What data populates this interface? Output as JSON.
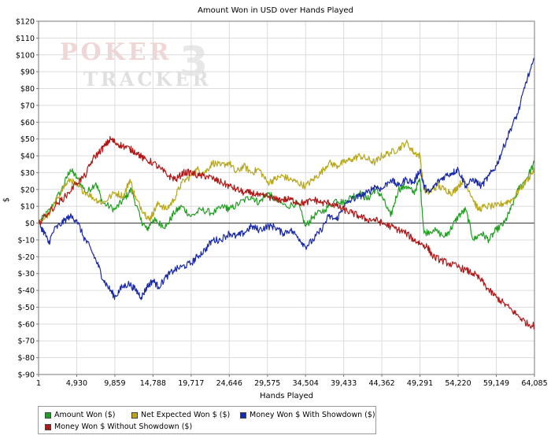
{
  "chart_data": {
    "type": "line",
    "title": "Amount Won in USD over Hands Played",
    "xlabel": "Hands Played",
    "ylabel": "$",
    "xlim": [
      1,
      64085
    ],
    "ylim": [
      -90,
      120
    ],
    "x_ticks": [
      "1",
      "4,930",
      "9,859",
      "14,788",
      "19,717",
      "24,646",
      "29,575",
      "34,504",
      "39,433",
      "44,362",
      "49,291",
      "54,220",
      "59,149",
      "64,085"
    ],
    "y_ticks": [
      "$120",
      "$110",
      "$100",
      "$90",
      "$80",
      "$70",
      "$60",
      "$50",
      "$40",
      "$30",
      "$20",
      "$10",
      "$0",
      "$-10",
      "$-20",
      "$-30",
      "$-40",
      "$-50",
      "$-60",
      "$-70",
      "$-80",
      "$-90"
    ],
    "grid": true,
    "legend_position": "bottom-left",
    "watermark": "POKER TRACKER 3",
    "series": [
      {
        "name": "Amount Won ($)",
        "color": "#1fa01f",
        "points": [
          [
            1,
            0
          ],
          [
            1500,
            8
          ],
          [
            3000,
            20
          ],
          [
            4100,
            32
          ],
          [
            4930,
            27
          ],
          [
            6200,
            18
          ],
          [
            7400,
            24
          ],
          [
            8300,
            12
          ],
          [
            9859,
            8
          ],
          [
            11000,
            14
          ],
          [
            12000,
            20
          ],
          [
            13200,
            2
          ],
          [
            14000,
            -4
          ],
          [
            14788,
            2
          ],
          [
            15500,
            0
          ],
          [
            16500,
            -2
          ],
          [
            17500,
            6
          ],
          [
            18500,
            10
          ],
          [
            19717,
            4
          ],
          [
            21000,
            8
          ],
          [
            22500,
            6
          ],
          [
            24000,
            10
          ],
          [
            24646,
            8
          ],
          [
            26000,
            12
          ],
          [
            27500,
            16
          ],
          [
            28500,
            12
          ],
          [
            29575,
            18
          ],
          [
            30500,
            14
          ],
          [
            32000,
            10
          ],
          [
            33500,
            12
          ],
          [
            34504,
            -2
          ],
          [
            35500,
            4
          ],
          [
            37000,
            8
          ],
          [
            38500,
            14
          ],
          [
            39433,
            12
          ],
          [
            40500,
            16
          ],
          [
            41500,
            18
          ],
          [
            42500,
            14
          ],
          [
            43500,
            20
          ],
          [
            44362,
            16
          ],
          [
            45500,
            4
          ],
          [
            46500,
            20
          ],
          [
            47500,
            22
          ],
          [
            48500,
            18
          ],
          [
            49291,
            26
          ],
          [
            49800,
            -6
          ],
          [
            51000,
            -4
          ],
          [
            52500,
            -8
          ],
          [
            53200,
            -4
          ],
          [
            54220,
            4
          ],
          [
            55200,
            8
          ],
          [
            56200,
            -10
          ],
          [
            57200,
            -6
          ],
          [
            58200,
            -10
          ],
          [
            59149,
            -4
          ],
          [
            60200,
            0
          ],
          [
            61000,
            8
          ],
          [
            62000,
            20
          ],
          [
            63000,
            26
          ],
          [
            64085,
            36
          ]
        ]
      },
      {
        "name": "Net Expected Won $ ($)",
        "color": "#b8a81c",
        "points": [
          [
            1,
            0
          ],
          [
            1500,
            6
          ],
          [
            3000,
            20
          ],
          [
            4100,
            26
          ],
          [
            4930,
            22
          ],
          [
            6200,
            18
          ],
          [
            7400,
            14
          ],
          [
            8300,
            12
          ],
          [
            9859,
            18
          ],
          [
            11000,
            16
          ],
          [
            11800,
            26
          ],
          [
            12600,
            14
          ],
          [
            13700,
            6
          ],
          [
            14300,
            2
          ],
          [
            14788,
            6
          ],
          [
            15500,
            12
          ],
          [
            16500,
            8
          ],
          [
            17500,
            14
          ],
          [
            18500,
            24
          ],
          [
            19717,
            28
          ],
          [
            20500,
            32
          ],
          [
            21500,
            30
          ],
          [
            22500,
            36
          ],
          [
            23500,
            34
          ],
          [
            24646,
            36
          ],
          [
            25500,
            30
          ],
          [
            26500,
            34
          ],
          [
            27500,
            30
          ],
          [
            28500,
            32
          ],
          [
            29575,
            24
          ],
          [
            30500,
            26
          ],
          [
            31500,
            28
          ],
          [
            32500,
            26
          ],
          [
            33500,
            24
          ],
          [
            34504,
            22
          ],
          [
            35500,
            26
          ],
          [
            36500,
            30
          ],
          [
            37500,
            36
          ],
          [
            38500,
            34
          ],
          [
            39433,
            36
          ],
          [
            40500,
            38
          ],
          [
            41500,
            40
          ],
          [
            42500,
            38
          ],
          [
            43500,
            36
          ],
          [
            44362,
            40
          ],
          [
            45500,
            42
          ],
          [
            46500,
            44
          ],
          [
            47500,
            48
          ],
          [
            48500,
            42
          ],
          [
            49291,
            40
          ],
          [
            49800,
            20
          ],
          [
            50500,
            18
          ],
          [
            51500,
            22
          ],
          [
            52500,
            20
          ],
          [
            53500,
            18
          ],
          [
            54220,
            22
          ],
          [
            55000,
            26
          ],
          [
            56000,
            16
          ],
          [
            56800,
            8
          ],
          [
            57800,
            10
          ],
          [
            59149,
            10
          ],
          [
            60200,
            12
          ],
          [
            61200,
            14
          ],
          [
            62200,
            20
          ],
          [
            63200,
            26
          ],
          [
            64085,
            32
          ]
        ]
      },
      {
        "name": "Money Won $ With Showdown ($)",
        "color": "#1a2aa8",
        "points": [
          [
            1,
            0
          ],
          [
            800,
            -6
          ],
          [
            1300,
            -12
          ],
          [
            2000,
            -4
          ],
          [
            3000,
            0
          ],
          [
            4000,
            4
          ],
          [
            4930,
            2
          ],
          [
            5800,
            -8
          ],
          [
            6800,
            -16
          ],
          [
            7600,
            -24
          ],
          [
            8400,
            -34
          ],
          [
            9300,
            -40
          ],
          [
            9859,
            -44
          ],
          [
            10800,
            -38
          ],
          [
            11700,
            -36
          ],
          [
            12600,
            -40
          ],
          [
            13300,
            -44
          ],
          [
            14000,
            -38
          ],
          [
            14788,
            -34
          ],
          [
            15500,
            -38
          ],
          [
            16500,
            -32
          ],
          [
            17500,
            -28
          ],
          [
            18500,
            -26
          ],
          [
            19717,
            -24
          ],
          [
            20500,
            -20
          ],
          [
            21500,
            -16
          ],
          [
            22500,
            -10
          ],
          [
            23500,
            -10
          ],
          [
            24646,
            -6
          ],
          [
            25500,
            -8
          ],
          [
            26500,
            -6
          ],
          [
            27500,
            -2
          ],
          [
            28500,
            -4
          ],
          [
            29575,
            -2
          ],
          [
            30500,
            -2
          ],
          [
            31500,
            -6
          ],
          [
            32500,
            -4
          ],
          [
            33500,
            -8
          ],
          [
            34504,
            -14
          ],
          [
            35500,
            -10
          ],
          [
            36500,
            -4
          ],
          [
            37500,
            4
          ],
          [
            38500,
            2
          ],
          [
            39433,
            10
          ],
          [
            40500,
            14
          ],
          [
            41500,
            16
          ],
          [
            42500,
            18
          ],
          [
            43500,
            22
          ],
          [
            44362,
            20
          ],
          [
            45500,
            26
          ],
          [
            46500,
            22
          ],
          [
            47500,
            26
          ],
          [
            48500,
            24
          ],
          [
            49291,
            32
          ],
          [
            49800,
            22
          ],
          [
            50500,
            18
          ],
          [
            51500,
            24
          ],
          [
            52500,
            28
          ],
          [
            53500,
            30
          ],
          [
            54220,
            32
          ],
          [
            55200,
            22
          ],
          [
            56200,
            26
          ],
          [
            57200,
            22
          ],
          [
            58200,
            28
          ],
          [
            59149,
            34
          ],
          [
            60000,
            44
          ],
          [
            61000,
            56
          ],
          [
            62000,
            66
          ],
          [
            63000,
            84
          ],
          [
            64085,
            97
          ]
        ]
      },
      {
        "name": "Money Won $ Without Showdown ($)",
        "color": "#b01818",
        "points": [
          [
            1,
            0
          ],
          [
            1200,
            6
          ],
          [
            2500,
            12
          ],
          [
            3500,
            16
          ],
          [
            4930,
            24
          ],
          [
            6000,
            28
          ],
          [
            7000,
            38
          ],
          [
            7800,
            42
          ],
          [
            8600,
            46
          ],
          [
            9300,
            50
          ],
          [
            9859,
            48
          ],
          [
            10800,
            46
          ],
          [
            11800,
            44
          ],
          [
            12700,
            42
          ],
          [
            13600,
            38
          ],
          [
            14788,
            36
          ],
          [
            15800,
            32
          ],
          [
            16800,
            28
          ],
          [
            17800,
            26
          ],
          [
            18700,
            30
          ],
          [
            19717,
            30
          ],
          [
            20700,
            28
          ],
          [
            21700,
            28
          ],
          [
            22700,
            26
          ],
          [
            23700,
            24
          ],
          [
            24646,
            22
          ],
          [
            25600,
            20
          ],
          [
            26600,
            18
          ],
          [
            27600,
            18
          ],
          [
            28600,
            16
          ],
          [
            29575,
            16
          ],
          [
            30600,
            14
          ],
          [
            31600,
            14
          ],
          [
            32600,
            14
          ],
          [
            33600,
            12
          ],
          [
            34504,
            12
          ],
          [
            35600,
            14
          ],
          [
            36600,
            12
          ],
          [
            37600,
            12
          ],
          [
            38600,
            10
          ],
          [
            39433,
            8
          ],
          [
            40500,
            6
          ],
          [
            41500,
            4
          ],
          [
            42500,
            2
          ],
          [
            43500,
            2
          ],
          [
            44362,
            0
          ],
          [
            45500,
            -2
          ],
          [
            46500,
            -4
          ],
          [
            47500,
            -6
          ],
          [
            48500,
            -10
          ],
          [
            49291,
            -12
          ],
          [
            50200,
            -14
          ],
          [
            51000,
            -20
          ],
          [
            52000,
            -22
          ],
          [
            53000,
            -24
          ],
          [
            54220,
            -26
          ],
          [
            55200,
            -28
          ],
          [
            56200,
            -30
          ],
          [
            57200,
            -34
          ],
          [
            58200,
            -40
          ],
          [
            59149,
            -44
          ],
          [
            60200,
            -48
          ],
          [
            61200,
            -52
          ],
          [
            62200,
            -56
          ],
          [
            63200,
            -60
          ],
          [
            64085,
            -61
          ]
        ]
      }
    ]
  }
}
